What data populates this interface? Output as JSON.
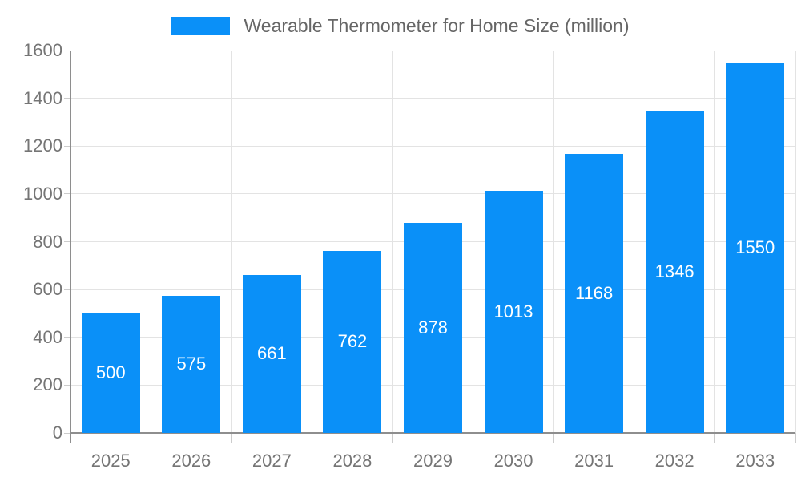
{
  "chart_data": {
    "type": "bar",
    "title": "Wearable Thermometer for Home Size (million)",
    "legend": "Wearable Thermometer for Home Size (million)",
    "legend_position": "top-center",
    "categories": [
      "2025",
      "2026",
      "2027",
      "2028",
      "2029",
      "2030",
      "2031",
      "2032",
      "2033"
    ],
    "values": [
      500,
      575,
      661,
      762,
      878,
      1013,
      1168,
      1346,
      1550
    ],
    "xlabel": "",
    "ylabel": "",
    "ylim": [
      0,
      1600
    ],
    "yticks": [
      0,
      200,
      400,
      600,
      800,
      1000,
      1200,
      1400,
      1600
    ],
    "grid": true,
    "value_labels": "inside-center-white",
    "colors": {
      "bar": "#0a90f8",
      "value_label": "#ffffff",
      "axis_label": "#757575",
      "legend_text": "#666666",
      "gridline": "#e3e3e3",
      "axis_line": "#8e8e8e",
      "tick": "#cccccc",
      "background": "#ffffff"
    }
  }
}
